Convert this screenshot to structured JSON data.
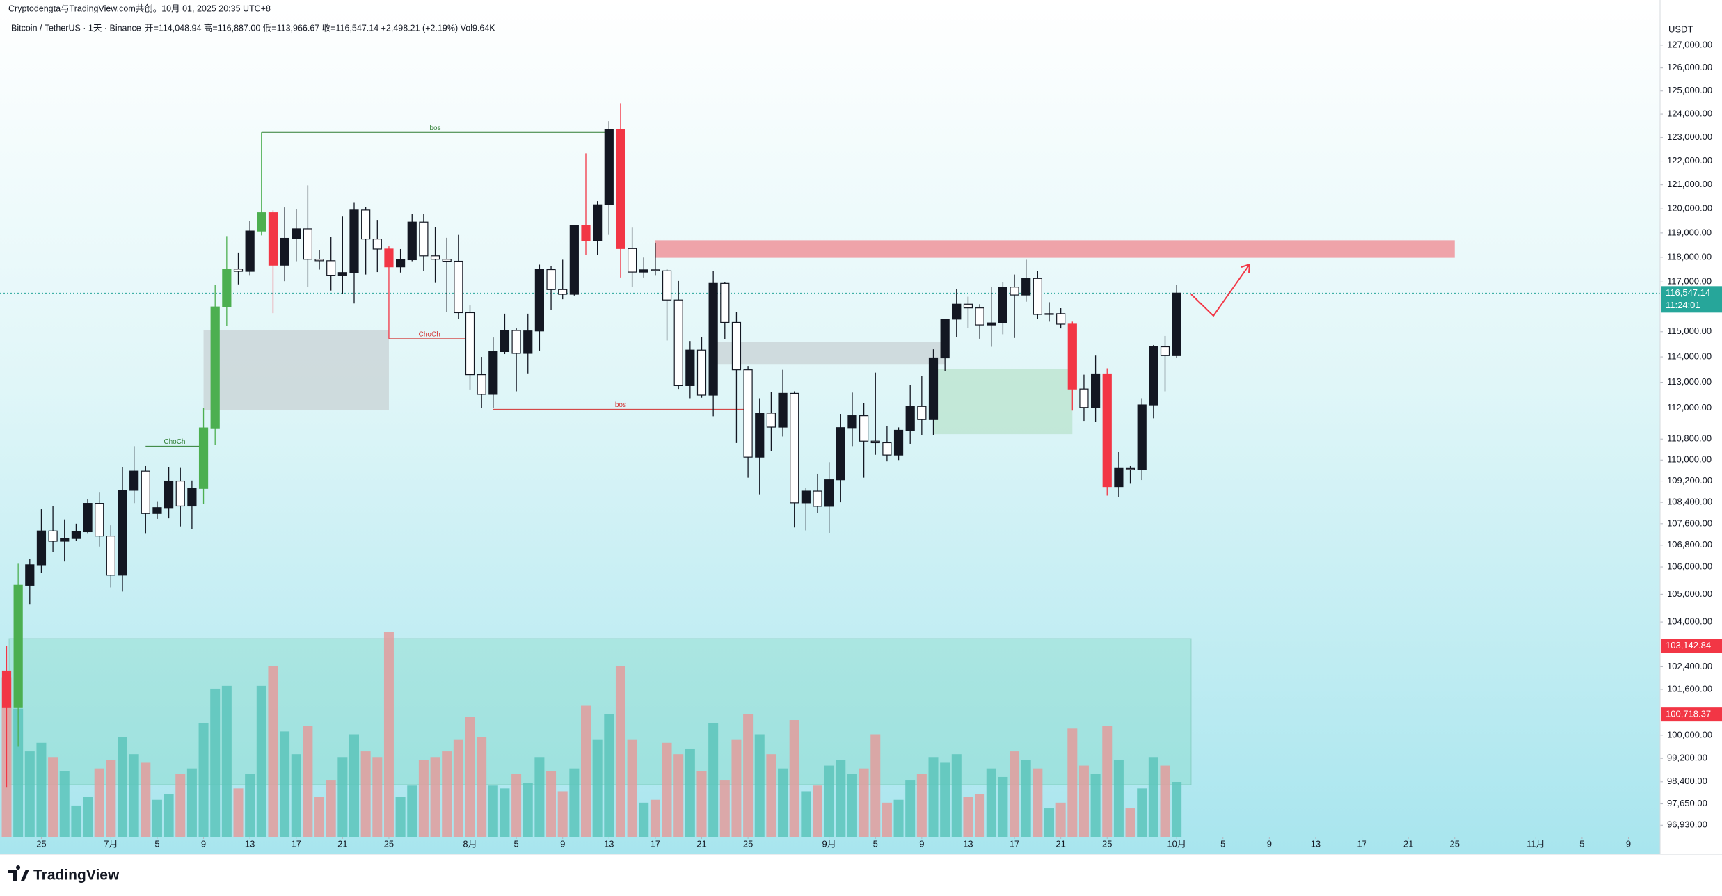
{
  "header": {
    "line1": "Cryptodengta与TradingView.com共创。10月 01, 2025 20:35 UTC+8",
    "symbol": "Bitcoin / TetherUS · 1天 · Binance",
    "ohlc": "开=114,048.94 高=116,887.00 低=113,966.67 收=116,547.14 +2,498.21 (+2.19%) Vol9.64K"
  },
  "chart_data": {
    "type": "candlestick",
    "currency": "USDT",
    "log_scale": true,
    "x": [
      "06-22",
      "06-23",
      "06-24",
      "06-25",
      "06-26",
      "06-27",
      "06-28",
      "06-29",
      "06-30",
      "07-01",
      "07-02",
      "07-03",
      "07-04",
      "07-05",
      "07-06",
      "07-07",
      "07-08",
      "07-09",
      "07-10",
      "07-11",
      "07-12",
      "07-13",
      "07-14",
      "07-15",
      "07-16",
      "07-17",
      "07-18",
      "07-19",
      "07-20",
      "07-21",
      "07-22",
      "07-23",
      "07-24",
      "07-25",
      "07-26",
      "07-27",
      "07-28",
      "07-29",
      "07-30",
      "07-31",
      "08-01",
      "08-02",
      "08-03",
      "08-04",
      "08-05",
      "08-06",
      "08-07",
      "08-08",
      "08-09",
      "08-10",
      "08-11",
      "08-12",
      "08-13",
      "08-14",
      "08-15",
      "08-16",
      "08-17",
      "08-18",
      "08-19",
      "08-20",
      "08-21",
      "08-22",
      "08-23",
      "08-24",
      "08-25",
      "08-26",
      "08-27",
      "08-28",
      "08-29",
      "08-30",
      "08-31",
      "09-01",
      "09-02",
      "09-03",
      "09-04",
      "09-05",
      "09-06",
      "09-07",
      "09-08",
      "09-09",
      "09-10",
      "09-11",
      "09-12",
      "09-13",
      "09-14",
      "09-15",
      "09-16",
      "09-17",
      "09-18",
      "09-19",
      "09-20",
      "09-21",
      "09-22",
      "09-23",
      "09-24",
      "09-25",
      "09-26",
      "09-27",
      "09-28",
      "09-29",
      "09-30",
      "10-01"
    ],
    "open": [
      102250,
      100960,
      105330,
      106080,
      107330,
      106950,
      107050,
      107300,
      108360,
      107140,
      105700,
      108850,
      109580,
      107980,
      108200,
      109200,
      108260,
      108920,
      111230,
      115990,
      117520,
      117430,
      119080,
      119840,
      117680,
      118780,
      119170,
      117920,
      117860,
      117250,
      117380,
      119950,
      118750,
      118340,
      117610,
      117900,
      119450,
      118060,
      117920,
      117840,
      115760,
      113300,
      112530,
      114210,
      115050,
      114140,
      115030,
      117500,
      116690,
      116500,
      119300,
      118690,
      120170,
      123340,
      118360,
      117400,
      117490,
      117450,
      116270,
      112870,
      114270,
      112500,
      116940,
      115370,
      113490,
      110110,
      111800,
      111260,
      112570,
      108380,
      108820,
      108250,
      109250,
      111240,
      111700,
      110720,
      110660,
      110190,
      111140,
      112060,
      111550,
      113960,
      115500,
      116100,
      115950,
      115270,
      115350,
      116790,
      116470,
      117140,
      115690,
      115720,
      115300,
      112740,
      112020,
      113330,
      108990,
      109680,
      109640,
      112120,
      114400,
      114048.94
    ],
    "high": [
      103130,
      106120,
      106300,
      108140,
      108270,
      107760,
      107600,
      108530,
      108790,
      107540,
      109740,
      110530,
      109770,
      108440,
      109740,
      109700,
      109220,
      111990,
      116870,
      118870,
      118200,
      119490,
      123220,
      119940,
      120060,
      120000,
      120980,
      118300,
      118850,
      119680,
      120250,
      120090,
      119540,
      118450,
      118340,
      119800,
      119800,
      119250,
      118800,
      118920,
      116050,
      114000,
      114770,
      115720,
      115130,
      115720,
      117700,
      117650,
      117900,
      119300,
      122330,
      120320,
      123700,
      124470,
      119220,
      117990,
      118600,
      117540,
      117040,
      114630,
      114800,
      117430,
      117000,
      115800,
      113640,
      112380,
      112620,
      113490,
      112650,
      108950,
      109480,
      109920,
      111770,
      112600,
      112200,
      113380,
      111300,
      111250,
      112900,
      113250,
      114300,
      115500,
      116700,
      116400,
      116100,
      116800,
      117000,
      117300,
      117900,
      117440,
      116180,
      115940,
      115400,
      113300,
      114050,
      113550,
      110300,
      109770,
      112380,
      114470,
      114830,
      116887.0
    ],
    "low": [
      98200,
      99600,
      104650,
      105780,
      106560,
      106200,
      106950,
      107250,
      106750,
      105250,
      105100,
      108370,
      107250,
      107780,
      107800,
      107500,
      107400,
      108350,
      110580,
      115220,
      116900,
      117250,
      118900,
      115740,
      117030,
      117840,
      116800,
      117500,
      116650,
      116520,
      116130,
      117300,
      117400,
      114720,
      117380,
      117840,
      117430,
      116960,
      115800,
      115500,
      112720,
      112000,
      112000,
      114110,
      112650,
      113350,
      114250,
      115880,
      116300,
      116450,
      118100,
      118100,
      118920,
      117180,
      116800,
      117180,
      117250,
      114650,
      112740,
      112380,
      112400,
      111680,
      114700,
      110650,
      109330,
      108700,
      110350,
      110900,
      107460,
      107350,
      108000,
      107260,
      108400,
      110530,
      109330,
      110200,
      109950,
      110000,
      110620,
      110960,
      110950,
      113450,
      114800,
      115160,
      114720,
      114400,
      114900,
      114750,
      116200,
      115500,
      115400,
      115130,
      111900,
      111500,
      111450,
      108650,
      108600,
      109100,
      109240,
      111600,
      112650,
      113966.67
    ],
    "close": [
      100960,
      105330,
      106080,
      107330,
      106950,
      107050,
      107300,
      108360,
      107140,
      105700,
      108850,
      109580,
      107980,
      108200,
      109200,
      108260,
      108920,
      111230,
      115990,
      117520,
      117430,
      119080,
      119840,
      117680,
      118780,
      119170,
      117920,
      117860,
      117250,
      117380,
      119950,
      118750,
      118340,
      117610,
      117900,
      119450,
      118060,
      117920,
      117840,
      115760,
      113300,
      112530,
      114210,
      115050,
      114140,
      115030,
      117500,
      116690,
      116500,
      119300,
      118690,
      120170,
      123340,
      118360,
      117400,
      117490,
      117450,
      116270,
      112870,
      114270,
      112500,
      116940,
      115370,
      113490,
      110110,
      111800,
      111260,
      112570,
      108380,
      108820,
      108250,
      109250,
      111240,
      111700,
      110720,
      110660,
      110190,
      111140,
      112060,
      111550,
      113960,
      115500,
      116100,
      115950,
      115270,
      115350,
      116790,
      116470,
      117140,
      115690,
      115720,
      115300,
      112740,
      112020,
      113330,
      108990,
      109680,
      109640,
      112120,
      114400,
      114050,
      116547.14
    ],
    "volume": [
      28000,
      22500,
      15000,
      16500,
      14000,
      11500,
      5500,
      7000,
      12000,
      13500,
      17500,
      14500,
      13000,
      6500,
      7500,
      11000,
      12000,
      20000,
      26000,
      26500,
      8500,
      11000,
      26500,
      30000,
      18500,
      14500,
      19500,
      7000,
      10000,
      14000,
      18000,
      15000,
      14000,
      36000,
      7000,
      9000,
      13500,
      14000,
      15000,
      17000,
      21000,
      17500,
      9000,
      8500,
      11000,
      9500,
      14000,
      11500,
      8000,
      12000,
      23000,
      17000,
      21500,
      30000,
      17000,
      6000,
      6500,
      16500,
      14500,
      15500,
      11500,
      20000,
      10000,
      17000,
      21500,
      18000,
      14500,
      12000,
      20500,
      8000,
      9000,
      12500,
      13500,
      11000,
      12000,
      18000,
      6000,
      6500,
      10000,
      11000,
      14000,
      13000,
      14500,
      7000,
      7500,
      12000,
      10500,
      15000,
      13500,
      12000,
      5000,
      6000,
      19000,
      12500,
      11000,
      19500,
      13500,
      5000,
      8500,
      14000,
      12500,
      9640
    ],
    "colors": [
      "#f23645",
      "#4caf50",
      "#131722",
      "#131722",
      "#ffffff",
      "#131722",
      "#131722",
      "#131722",
      "#ffffff",
      "#ffffff",
      "#131722",
      "#131722",
      "#ffffff",
      "#131722",
      "#131722",
      "#ffffff",
      "#131722",
      "#4caf50",
      "#4caf50",
      "#4caf50",
      "#ffffff",
      "#131722",
      "#4caf50",
      "#f23645",
      "#131722",
      "#131722",
      "#ffffff",
      "#ffffff",
      "#ffffff",
      "#131722",
      "#131722",
      "#ffffff",
      "#ffffff",
      "#f23645",
      "#131722",
      "#131722",
      "#ffffff",
      "#ffffff",
      "#ffffff",
      "#ffffff",
      "#ffffff",
      "#ffffff",
      "#131722",
      "#131722",
      "#ffffff",
      "#131722",
      "#131722",
      "#ffffff",
      "#ffffff",
      "#131722",
      "#f23645",
      "#131722",
      "#131722",
      "#f23645",
      "#ffffff",
      "#131722",
      "#ffffff",
      "#ffffff",
      "#ffffff",
      "#131722",
      "#ffffff",
      "#131722",
      "#ffffff",
      "#ffffff",
      "#ffffff",
      "#131722",
      "#ffffff",
      "#131722",
      "#ffffff",
      "#131722",
      "#ffffff",
      "#131722",
      "#131722",
      "#131722",
      "#ffffff",
      "#ffffff",
      "#ffffff",
      "#131722",
      "#131722",
      "#ffffff",
      "#131722",
      "#131722",
      "#131722",
      "#ffffff",
      "#ffffff",
      "#131722",
      "#131722",
      "#ffffff",
      "#131722",
      "#ffffff",
      "#131722",
      "#ffffff",
      "#f23645",
      "#ffffff",
      "#131722",
      "#f23645",
      "#131722",
      "#ffffff",
      "#131722",
      "#131722",
      "#ffffff",
      "#131722"
    ],
    "volume_up_color": "#5cc4bb",
    "volume_down_color": "#e39c9c",
    "ylim": [
      96540,
      129000
    ],
    "yticks": [
      {
        "value": 127000,
        "label": "127,000.00"
      },
      {
        "value": 126000,
        "label": "126,000.00"
      },
      {
        "value": 125000,
        "label": "125,000.00"
      },
      {
        "value": 124000,
        "label": "124,000.00"
      },
      {
        "value": 123000,
        "label": "123,000.00"
      },
      {
        "value": 122000,
        "label": "122,000.00"
      },
      {
        "value": 121000,
        "label": "121,000.00"
      },
      {
        "value": 120000,
        "label": "120,000.00"
      },
      {
        "value": 119000,
        "label": "119,000.00"
      },
      {
        "value": 118000,
        "label": "118,000.00"
      },
      {
        "value": 117000,
        "label": "117,000.00"
      },
      {
        "value": 115000,
        "label": "115,000.00"
      },
      {
        "value": 114000,
        "label": "114,000.00"
      },
      {
        "value": 113000,
        "label": "113,000.00"
      },
      {
        "value": 112000,
        "label": "112,000.00"
      },
      {
        "value": 110800,
        "label": "110,800.00"
      },
      {
        "value": 110000,
        "label": "110,000.00"
      },
      {
        "value": 109200,
        "label": "109,200.00"
      },
      {
        "value": 108400,
        "label": "108,400.00"
      },
      {
        "value": 107600,
        "label": "107,600.00"
      },
      {
        "value": 106800,
        "label": "106,800.00"
      },
      {
        "value": 106000,
        "label": "106,000.00"
      },
      {
        "value": 105000,
        "label": "105,000.00"
      },
      {
        "value": 104000,
        "label": "104,000.00"
      },
      {
        "value": 102400,
        "label": "102,400.00"
      },
      {
        "value": 101600,
        "label": "101,600.00"
      },
      {
        "value": 100000,
        "label": "100,000.00"
      },
      {
        "value": 99200,
        "label": "99,200.00"
      },
      {
        "value": 98400,
        "label": "98,400.00"
      },
      {
        "value": 97650,
        "label": "97,650.00"
      },
      {
        "value": 96930,
        "label": "96,930.00"
      }
    ],
    "xticks": [
      {
        "value": "06-25",
        "label": "25"
      },
      {
        "value": "07-01",
        "label": "7月"
      },
      {
        "value": "07-05",
        "label": "5"
      },
      {
        "value": "07-09",
        "label": "9"
      },
      {
        "value": "07-13",
        "label": "13"
      },
      {
        "value": "07-17",
        "label": "17"
      },
      {
        "value": "07-21",
        "label": "21"
      },
      {
        "value": "07-25",
        "label": "25"
      },
      {
        "value": "08-01",
        "label": "8月"
      },
      {
        "value": "08-05",
        "label": "5"
      },
      {
        "value": "08-09",
        "label": "9"
      },
      {
        "value": "08-13",
        "label": "13"
      },
      {
        "value": "08-17",
        "label": "17"
      },
      {
        "value": "08-21",
        "label": "21"
      },
      {
        "value": "08-25",
        "label": "25"
      },
      {
        "value": "09-01",
        "label": "9月"
      },
      {
        "value": "09-05",
        "label": "5"
      },
      {
        "value": "09-09",
        "label": "9"
      },
      {
        "value": "09-13",
        "label": "13"
      },
      {
        "value": "09-17",
        "label": "17"
      },
      {
        "value": "09-21",
        "label": "21"
      },
      {
        "value": "09-25",
        "label": "25"
      },
      {
        "value": "10-01",
        "label": "10月"
      },
      {
        "value": "10-05",
        "label": "5"
      },
      {
        "value": "10-09",
        "label": "9"
      },
      {
        "value": "10-13",
        "label": "13"
      },
      {
        "value": "10-17",
        "label": "17"
      },
      {
        "value": "10-21",
        "label": "21"
      },
      {
        "value": "10-25",
        "label": "25"
      },
      {
        "value": "11-01",
        "label": "11月"
      },
      {
        "value": "11-05",
        "label": "5"
      },
      {
        "value": "11-09",
        "label": "9"
      }
    ],
    "price_labels": [
      {
        "value": 116547.14,
        "label": "116,547.14",
        "sub": "11:24:01",
        "color": "#26a69a"
      },
      {
        "value": 103142.84,
        "label": "103,142.84",
        "color": "#f23645"
      },
      {
        "value": 100718.37,
        "label": "100,718.37",
        "color": "#f23645"
      }
    ],
    "zones": [
      {
        "from": "08-17",
        "to": "10-25",
        "low": 117980,
        "high": 118700,
        "color": "#f0858e"
      },
      {
        "from": "07-09",
        "to": "07-25",
        "low": 111920,
        "high": 115050,
        "color": "#c8d2d4"
      },
      {
        "from": "08-22",
        "to": "09-11",
        "low": 113720,
        "high": 114580,
        "color": "#c8d2d4"
      },
      {
        "from": "09-10",
        "to": "09-22",
        "low": 110990,
        "high": 113510,
        "color": "#b9e3cd"
      }
    ],
    "levels": [
      {
        "label": "bos",
        "from": "07-14",
        "to": "08-13",
        "price": 123220,
        "color": "#2e7d32"
      },
      {
        "label": "bos",
        "from": "08-03",
        "to": "08-25",
        "price": 111950,
        "color": "#d32f2f"
      },
      {
        "label": "ChoCh",
        "from": "07-25",
        "to": "08-01",
        "price": 114720,
        "color": "#d32f2f"
      },
      {
        "label": "ChoCh",
        "from": "07-04",
        "to": "07-09",
        "price": 110530,
        "color": "#2e7d32"
      }
    ]
  },
  "footer": {
    "brand": "TradingView"
  }
}
